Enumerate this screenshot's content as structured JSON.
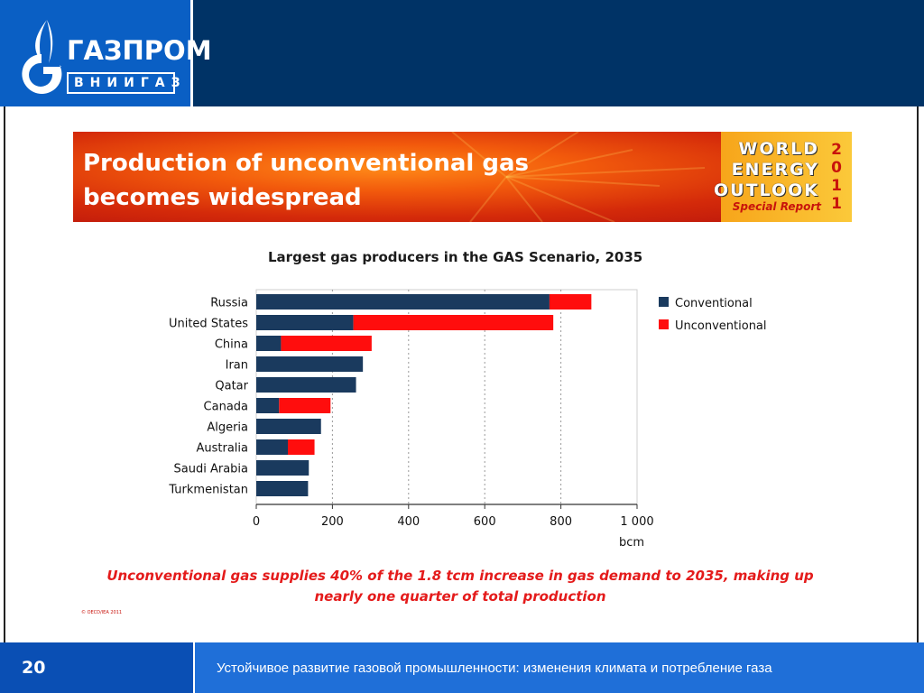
{
  "header": {
    "logo_word": "ГАЗПРОМ",
    "logo_sub": "ВНИИГАЗ"
  },
  "banner": {
    "title": "Production of unconventional gas becomes widespread",
    "weo_lines": [
      "WORLD",
      "ENERGY",
      "OUTLOOK"
    ],
    "weo_year": [
      "2",
      "0",
      "1",
      "1"
    ],
    "weo_special": "Special Report"
  },
  "chart_data": {
    "type": "bar",
    "orientation": "horizontal",
    "stacked": true,
    "title": "Largest gas producers in the GAS Scenario, 2035",
    "xlabel": "bcm",
    "ylabel": "",
    "xlim": [
      0,
      1000
    ],
    "x_ticks": [
      "0",
      "200",
      "400",
      "600",
      "800",
      "1 000"
    ],
    "grid": "vertical dotted",
    "legend_position": "right",
    "categories": [
      "Russia",
      "United States",
      "China",
      "Iran",
      "Qatar",
      "Canada",
      "Algeria",
      "Australia",
      "Saudi Arabia",
      "Turkmenistan"
    ],
    "series": [
      {
        "name": "Conventional",
        "color": "#1a3a5e",
        "values": [
          770,
          255,
          65,
          280,
          262,
          60,
          170,
          83,
          138,
          136
        ]
      },
      {
        "name": "Unconventional",
        "color": "#ff0d0d",
        "values": [
          110,
          525,
          238,
          0,
          0,
          135,
          0,
          70,
          0,
          0
        ]
      }
    ]
  },
  "footnote": "Unconventional gas supplies 40% of the 1.8 tcm increase in gas demand to 2035, making up nearly one quarter of total production",
  "copyright": "© OECD/IEA 2011",
  "footer": {
    "page_number": "20",
    "text": "Устойчивое развитие газовой  промышленности: изменения климата и потребление газа"
  }
}
